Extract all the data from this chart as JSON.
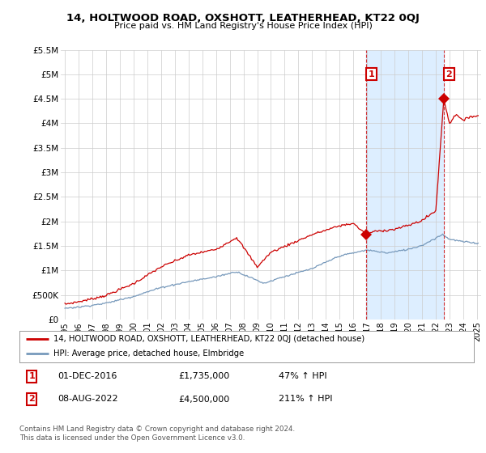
{
  "title": "14, HOLTWOOD ROAD, OXSHOTT, LEATHERHEAD, KT22 0QJ",
  "subtitle": "Price paid vs. HM Land Registry's House Price Index (HPI)",
  "ylim": [
    0,
    5500000
  ],
  "yticks": [
    0,
    500000,
    1000000,
    1500000,
    2000000,
    2500000,
    3000000,
    3500000,
    4000000,
    4500000,
    5000000,
    5500000
  ],
  "ytick_labels": [
    "£0",
    "£500K",
    "£1M",
    "£1.5M",
    "£2M",
    "£2.5M",
    "£3M",
    "£3.5M",
    "£4M",
    "£4.5M",
    "£5M",
    "£5.5M"
  ],
  "xlim_start": 1994.7,
  "xlim_end": 2025.3,
  "red_line_color": "#cc0000",
  "blue_line_color": "#7799bb",
  "shade_color": "#ddeeff",
  "point1_x": 2016.917,
  "point1_y": 1735000,
  "point2_x": 2022.58,
  "point2_y": 4500000,
  "annotation1_label": "1",
  "annotation2_label": "2",
  "legend_red_label": "14, HOLTWOOD ROAD, OXSHOTT, LEATHERHEAD, KT22 0QJ (detached house)",
  "legend_blue_label": "HPI: Average price, detached house, Elmbridge",
  "table_row1": [
    "1",
    "01-DEC-2016",
    "£1,735,000",
    "47% ↑ HPI"
  ],
  "table_row2": [
    "2",
    "08-AUG-2022",
    "£4,500,000",
    "211% ↑ HPI"
  ],
  "footnote": "Contains HM Land Registry data © Crown copyright and database right 2024.\nThis data is licensed under the Open Government Licence v3.0.",
  "background_color": "#ffffff",
  "grid_color": "#cccccc"
}
